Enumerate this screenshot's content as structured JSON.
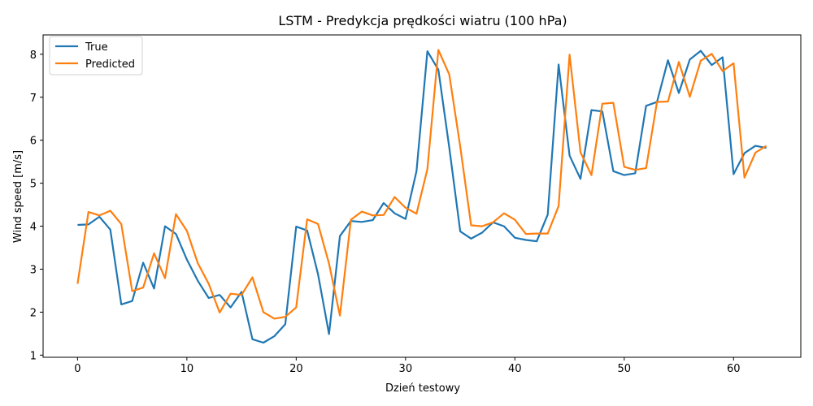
{
  "chart_data": {
    "type": "line",
    "title": "LSTM - Predykcja prędkości wiatru (100 hPa)",
    "xlabel": "Dzień testowy",
    "ylabel": "Wind speed [m/s]",
    "xlim": [
      -3.15,
      66.15
    ],
    "ylim": [
      0.95,
      8.45
    ],
    "xticks": [
      0,
      10,
      20,
      30,
      40,
      50,
      60
    ],
    "yticks": [
      1,
      2,
      3,
      4,
      5,
      6,
      7,
      8
    ],
    "legend_position": "upper-left",
    "grid": false,
    "x": [
      0,
      1,
      2,
      3,
      4,
      5,
      6,
      7,
      8,
      9,
      10,
      11,
      12,
      13,
      14,
      15,
      16,
      17,
      18,
      19,
      20,
      21,
      22,
      23,
      24,
      25,
      26,
      27,
      28,
      29,
      30,
      31,
      32,
      33,
      34,
      35,
      36,
      37,
      38,
      39,
      40,
      41,
      42,
      43,
      44,
      45,
      46,
      47,
      48,
      49,
      50,
      51,
      52,
      53,
      54,
      55,
      56,
      57,
      58,
      59,
      60,
      61,
      62,
      63
    ],
    "series": [
      {
        "name": "True",
        "color": "#1f77b4",
        "values": [
          4.03,
          4.04,
          4.22,
          3.92,
          2.18,
          2.26,
          3.15,
          2.55,
          4.0,
          3.82,
          3.22,
          2.73,
          2.33,
          2.4,
          2.11,
          2.47,
          1.37,
          1.29,
          1.44,
          1.72,
          3.99,
          3.9,
          2.88,
          1.49,
          3.77,
          4.12,
          4.1,
          4.14,
          4.54,
          4.3,
          4.17,
          5.28,
          8.07,
          7.64,
          5.83,
          3.88,
          3.71,
          3.85,
          4.09,
          4.0,
          3.73,
          3.68,
          3.65,
          4.27,
          7.76,
          5.64,
          5.1,
          6.7,
          6.67,
          5.28,
          5.19,
          5.23,
          6.8,
          6.89,
          7.86,
          7.1,
          7.88,
          8.08,
          7.75,
          7.93,
          5.21,
          5.7,
          5.87,
          5.82
        ]
      },
      {
        "name": "Predicted",
        "color": "#ff7f0e",
        "values": [
          2.66,
          4.33,
          4.25,
          4.36,
          4.05,
          2.49,
          2.57,
          3.37,
          2.79,
          4.28,
          3.89,
          3.14,
          2.66,
          1.99,
          2.43,
          2.4,
          2.81,
          2.0,
          1.85,
          1.89,
          2.11,
          4.16,
          4.05,
          3.13,
          1.92,
          4.15,
          4.34,
          4.25,
          4.26,
          4.68,
          4.43,
          4.29,
          5.33,
          8.1,
          7.53,
          5.85,
          4.02,
          4.0,
          4.09,
          4.3,
          4.15,
          3.82,
          3.83,
          3.83,
          4.47,
          7.99,
          5.72,
          5.19,
          6.85,
          6.87,
          5.38,
          5.31,
          5.35,
          6.89,
          6.9,
          7.82,
          7.01,
          7.85,
          8.01,
          7.61,
          7.79,
          5.13,
          5.71,
          5.87
        ]
      }
    ]
  }
}
